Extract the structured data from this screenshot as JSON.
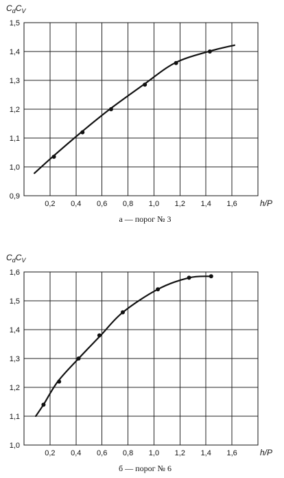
{
  "chart_data": [
    {
      "type": "line",
      "caption": "а — порог № 3",
      "xlabel": "h/P",
      "ylabel": "CdCV",
      "xlim": [
        0,
        1.8
      ],
      "ylim": [
        0.9,
        1.5
      ],
      "x_ticks": [
        "0,2",
        "0,4",
        "0,6",
        "0,8",
        "1,0",
        "1,2",
        "1,4",
        "1,6"
      ],
      "y_ticks": [
        "0,9",
        "1,0",
        "1,1",
        "1,2",
        "1,3",
        "1,4",
        "1,5"
      ],
      "grid": true,
      "curve": {
        "x": [
          0.08,
          0.22,
          0.44,
          0.66,
          0.92,
          1.16,
          1.42,
          1.62
        ],
        "y": [
          0.978,
          1.035,
          1.12,
          1.2,
          1.285,
          1.36,
          1.4,
          1.422
        ]
      },
      "points": {
        "x": [
          0.23,
          0.45,
          0.67,
          0.93,
          1.17,
          1.43
        ],
        "y": [
          1.035,
          1.12,
          1.2,
          1.285,
          1.36,
          1.4
        ]
      }
    },
    {
      "type": "line",
      "caption": "б — порог № 6",
      "xlabel": "h/P",
      "ylabel": "CdCV",
      "xlim": [
        0,
        1.8
      ],
      "ylim": [
        1.0,
        1.6
      ],
      "x_ticks": [
        "0,2",
        "0,4",
        "0,6",
        "0,8",
        "1,0",
        "1,2",
        "1,4",
        "1,6"
      ],
      "y_ticks": [
        "1,0",
        "1,1",
        "1,2",
        "1,3",
        "1,4",
        "1,5",
        "1,6"
      ],
      "grid": true,
      "curve": {
        "x": [
          0.09,
          0.15,
          0.26,
          0.42,
          0.59,
          0.76,
          1.03,
          1.27,
          1.44
        ],
        "y": [
          1.1,
          1.14,
          1.22,
          1.3,
          1.38,
          1.46,
          1.54,
          1.58,
          1.585
        ]
      },
      "points": {
        "x": [
          0.15,
          0.27,
          0.42,
          0.58,
          0.76,
          1.03,
          1.27,
          1.44
        ],
        "y": [
          1.14,
          1.22,
          1.3,
          1.38,
          1.46,
          1.54,
          1.58,
          1.585
        ]
      }
    }
  ]
}
